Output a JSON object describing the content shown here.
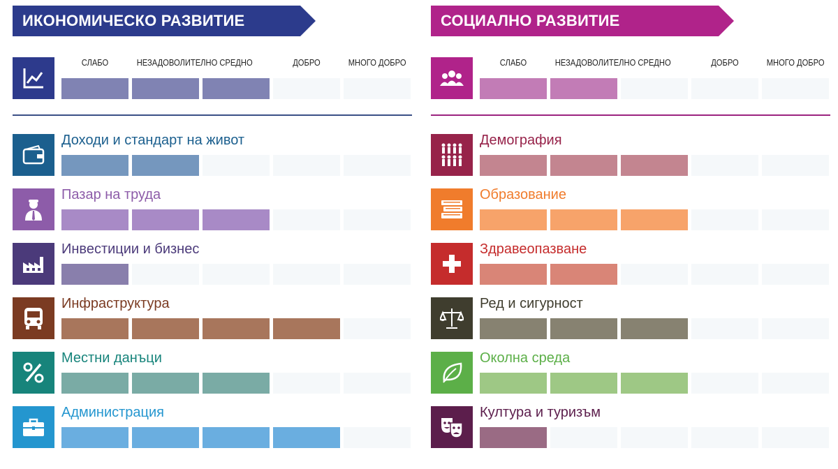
{
  "rating_labels": [
    "СЛАБО",
    "НЕЗАДОВОЛИТЕЛНО",
    "СРЕДНО",
    "ДОБРО",
    "МНОГО ДОБРО"
  ],
  "sections": [
    {
      "title": "ИКОНОМИЧЕСКО РАЗВИТИЕ",
      "color": "#2c3b8c",
      "overall": {
        "icon": "line-chart-icon",
        "color": "#2d3a8c",
        "bar_color": "#8083b3",
        "level": 3
      },
      "categories": [
        {
          "label": "Доходи и стандарт на живот",
          "icon": "wallet-icon",
          "color": "#1b5f8e",
          "bar_color": "#7597be",
          "level": 2
        },
        {
          "label": "Пазар на труда",
          "icon": "worker-icon",
          "color": "#8d5ca9",
          "bar_color": "#a88ac6",
          "level": 3
        },
        {
          "label": "Инвестиции и бизнес",
          "icon": "factory-icon",
          "color": "#4b3a7a",
          "bar_color": "#897fac",
          "level": 1
        },
        {
          "label": "Инфраструктура",
          "icon": "bus-icon",
          "color": "#7b3b22",
          "bar_color": "#a8765c",
          "level": 4
        },
        {
          "label": "Местни данъци",
          "icon": "percent-icon",
          "color": "#17847b",
          "bar_color": "#7aaba5",
          "level": 3
        },
        {
          "label": "Администрация",
          "icon": "briefcase-icon",
          "color": "#2496cf",
          "bar_color": "#6aaee0",
          "level": 4
        }
      ]
    },
    {
      "title": "СОЦИАЛНО РАЗВИТИЕ",
      "color": "#b0238a",
      "overall": {
        "icon": "people-icon",
        "color": "#b0238a",
        "bar_color": "#c27cb6",
        "level": 2
      },
      "categories": [
        {
          "label": "Демография",
          "icon": "population-icon",
          "color": "#97234a",
          "bar_color": "#c38590",
          "level": 3
        },
        {
          "label": "Образование",
          "icon": "books-icon",
          "color": "#f07c2c",
          "bar_color": "#f7a36a",
          "level": 3
        },
        {
          "label": "Здравеопазване",
          "icon": "medical-cross-icon",
          "color": "#c52c2c",
          "bar_color": "#d98577",
          "level": 2
        },
        {
          "label": "Ред и сигурност",
          "icon": "scales-icon",
          "color": "#3f3d2e",
          "bar_color": "#878271",
          "level": 3
        },
        {
          "label": "Околна среда",
          "icon": "leaf-icon",
          "color": "#5caf48",
          "bar_color": "#9ec885",
          "level": 3
        },
        {
          "label": "Култура и туризъм",
          "icon": "theater-masks-icon",
          "color": "#5c1e4c",
          "bar_color": "#9a6b84",
          "level": 1
        }
      ]
    }
  ]
}
